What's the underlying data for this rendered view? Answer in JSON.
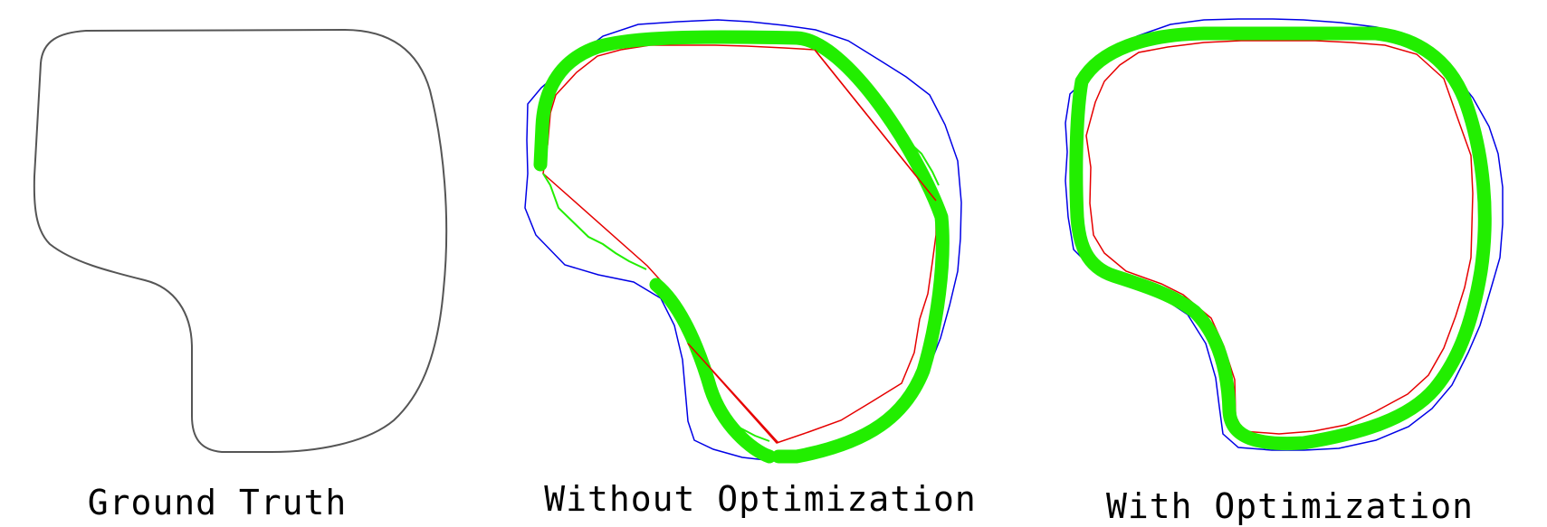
{
  "colors": {
    "outer_points": "#0000e6",
    "inner_points": "#e60000",
    "missing_points": "#d9d9d9",
    "start_points": "#000000",
    "optimized_contour": "#22ee00",
    "ground_truth_line": "#555555"
  },
  "panels": [
    {
      "caption": "Ground Truth"
    },
    {
      "caption": "Without Optimization"
    },
    {
      "caption": "With Optimization"
    }
  ]
}
